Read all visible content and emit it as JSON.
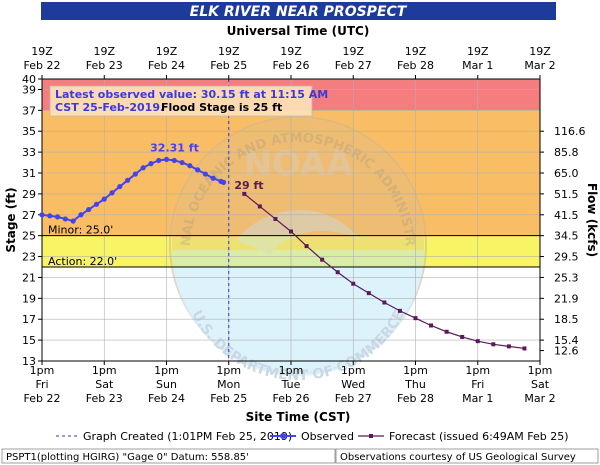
{
  "chart_data": {
    "type": "line",
    "title": "ELK RIVER NEAR PROSPECT",
    "top_axis_title": "Universal Time (UTC)",
    "bottom_axis_title": "Site Time (CST)",
    "ylabel_left": "Stage (ft)",
    "ylabel_right": "Flow (kcfs)",
    "ylim": [
      13,
      40
    ],
    "xlim_hours_from_feb22_1pm": [
      0,
      192
    ],
    "stage_ticks": [
      13,
      15,
      17,
      19,
      21,
      23,
      25,
      27,
      29,
      31,
      33,
      35,
      37,
      39,
      40
    ],
    "flow_ticks": [
      {
        "stage": 14,
        "label": "12.6"
      },
      {
        "stage": 15,
        "label": "15.4"
      },
      {
        "stage": 17,
        "label": "18.5"
      },
      {
        "stage": 19,
        "label": "21.9"
      },
      {
        "stage": 21,
        "label": "25.3"
      },
      {
        "stage": 23,
        "label": "29.5"
      },
      {
        "stage": 25,
        "label": "34.5"
      },
      {
        "stage": 27,
        "label": "41.5"
      },
      {
        "stage": 29,
        "label": "51.5"
      },
      {
        "stage": 31,
        "label": "65.0"
      },
      {
        "stage": 33,
        "label": "85.8"
      },
      {
        "stage": 35,
        "label": "116.6"
      }
    ],
    "top_ticks": [
      {
        "l1": "19Z",
        "l2": "Feb 22"
      },
      {
        "l1": "19Z",
        "l2": "Feb 23"
      },
      {
        "l1": "19Z",
        "l2": "Feb 24"
      },
      {
        "l1": "19Z",
        "l2": "Feb 25"
      },
      {
        "l1": "19Z",
        "l2": "Feb 26"
      },
      {
        "l1": "19Z",
        "l2": "Feb 27"
      },
      {
        "l1": "19Z",
        "l2": "Feb 28"
      },
      {
        "l1": "19Z",
        "l2": "Mar 1"
      },
      {
        "l1": "19Z",
        "l2": "Mar 2"
      }
    ],
    "bottom_ticks": [
      {
        "l1": "1pm",
        "l2": "Fri",
        "l3": "Feb 22"
      },
      {
        "l1": "1pm",
        "l2": "Sat",
        "l3": "Feb 23"
      },
      {
        "l1": "1pm",
        "l2": "Sun",
        "l3": "Feb 24"
      },
      {
        "l1": "1pm",
        "l2": "Mon",
        "l3": "Feb 25"
      },
      {
        "l1": "1pm",
        "l2": "Tue",
        "l3": "Feb 26"
      },
      {
        "l1": "1pm",
        "l2": "Wed",
        "l3": "Feb 27"
      },
      {
        "l1": "1pm",
        "l2": "Thu",
        "l3": "Feb 28"
      },
      {
        "l1": "1pm",
        "l2": "Fri",
        "l3": "Mar 1"
      },
      {
        "l1": "1pm",
        "l2": "Sat",
        "l3": "Mar 2"
      }
    ],
    "bands": [
      {
        "name": "major",
        "from": 37,
        "to": 40,
        "color": "#f47e7e"
      },
      {
        "name": "moderate",
        "from": 25,
        "to": 37,
        "color": "#f9bd66"
      },
      {
        "name": "minor",
        "from": 22,
        "to": 25,
        "color": "#f7f565"
      },
      {
        "name": "normal",
        "from": 13,
        "to": 22,
        "color": "#ffffff"
      }
    ],
    "threshold_lines": [
      {
        "stage": 25,
        "label": "Minor: 25.0'"
      },
      {
        "stage": 22,
        "label": "Action: 22.0'"
      }
    ],
    "graph_created_hour": 72,
    "observed": {
      "name": "Observed",
      "color": "#4444ee",
      "x": [
        0,
        3,
        6,
        9,
        12,
        15,
        18,
        21,
        24,
        27,
        30,
        33,
        36,
        39,
        42,
        45,
        48,
        51,
        54,
        57,
        60,
        63,
        66,
        69,
        70
      ],
      "y": [
        27.0,
        26.9,
        26.8,
        26.6,
        26.4,
        27.0,
        27.5,
        28.0,
        28.5,
        29.1,
        29.7,
        30.3,
        30.9,
        31.5,
        31.9,
        32.2,
        32.3,
        32.2,
        32.0,
        31.7,
        31.3,
        30.9,
        30.5,
        30.2,
        30.1
      ]
    },
    "forecast": {
      "name": "Forecast",
      "color": "#5a1a5a",
      "x": [
        78,
        84,
        90,
        96,
        102,
        108,
        114,
        120,
        126,
        132,
        138,
        144,
        150,
        156,
        162,
        168,
        174,
        180,
        186
      ],
      "y": [
        29.0,
        27.8,
        26.6,
        25.4,
        24.0,
        22.7,
        21.5,
        20.4,
        19.5,
        18.6,
        17.8,
        17.1,
        16.4,
        15.8,
        15.3,
        14.9,
        14.6,
        14.4,
        14.2
      ]
    },
    "annotations": {
      "latest_line1": "Latest observed value: 30.15 ft at 11:15 AM",
      "latest_line2a": "CST 25-Feb-2019.",
      "latest_line2b": "Flood Stage is 25 ft",
      "crest_label": "32.31 ft",
      "crest_x": 48,
      "crest_y": 32.3,
      "forecast_label": "29 ft",
      "forecast_label_x": 78,
      "forecast_label_y": 29.0
    },
    "legend": {
      "graph_created": "Graph Created (1:01PM Feb 25, 2019)",
      "observed": "Observed",
      "forecast": "Forecast (issued 6:49AM Feb 25)"
    },
    "footer": {
      "left": "PSPT1(plotting HGIRG) \"Gage 0\" Datum:  558.85'",
      "right": "Observations courtesy of US Geological Survey"
    },
    "watermark": {
      "center": "NOAA",
      "arc_top": "NATIONAL OCEANIC AND ATMOSPHERIC ADMINISTRATION",
      "arc_bottom": "U.S. DEPARTMENT OF COMMERCE"
    }
  }
}
